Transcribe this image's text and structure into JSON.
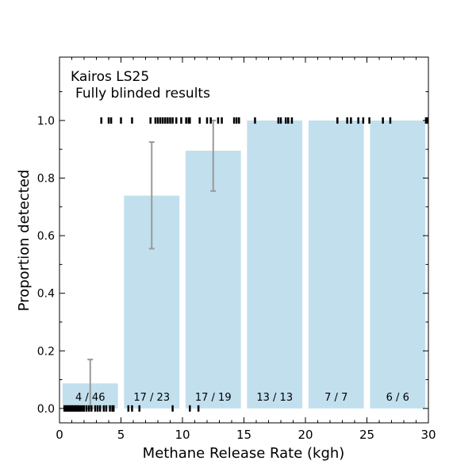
{
  "chart_data": {
    "type": "bar",
    "title": "Kairos LS25",
    "subtitle": "Fully blinded results",
    "xlabel": "Methane Release Rate (kgh)",
    "ylabel": "Proportion detected",
    "xlim": [
      0,
      30
    ],
    "ylim": [
      -0.05,
      1.22
    ],
    "xticks": [
      0,
      5,
      10,
      15,
      20,
      25,
      30
    ],
    "yticks": [
      0.0,
      0.2,
      0.4,
      0.6,
      0.8,
      1.0
    ],
    "xtick_labels": [
      "0",
      "5",
      "10",
      "15",
      "20",
      "25",
      "30"
    ],
    "ytick_labels": [
      "0.0",
      "0.2",
      "0.4",
      "0.6",
      "0.8",
      "1.0"
    ],
    "bar_color": "#c2dfee",
    "errorbar_color": "#999999",
    "grid": false,
    "bins": [
      {
        "x0": 0,
        "x1": 5,
        "value": 0.087,
        "label": "4 / 46",
        "err_center": 2.5,
        "err_low": 0.0,
        "err_high": 0.17
      },
      {
        "x0": 5,
        "x1": 10,
        "value": 0.739,
        "label": "17 / 23",
        "err_center": 7.5,
        "err_low": 0.555,
        "err_high": 0.925
      },
      {
        "x0": 10,
        "x1": 15,
        "value": 0.895,
        "label": "17 / 19",
        "err_center": 12.5,
        "err_low": 0.755,
        "err_high": 1.0
      },
      {
        "x0": 15,
        "x1": 20,
        "value": 1.0,
        "label": "13 / 13",
        "err_center": null,
        "err_low": null,
        "err_high": null
      },
      {
        "x0": 20,
        "x1": 25,
        "value": 1.0,
        "label": "7 / 7",
        "err_center": null,
        "err_low": null,
        "err_high": null
      },
      {
        "x0": 25,
        "x1": 30,
        "value": 1.0,
        "label": "6 / 6",
        "err_center": null,
        "err_low": null,
        "err_high": null
      }
    ],
    "detected_rates": [
      3.4,
      4.0,
      4.2,
      5.0,
      5.9,
      7.4,
      7.8,
      8.0,
      8.2,
      8.4,
      8.6,
      8.8,
      9.0,
      9.2,
      9.5,
      9.9,
      10.3,
      10.5,
      10.6,
      11.4,
      12.0,
      12.3,
      12.9,
      13.2,
      14.2,
      14.4,
      14.6,
      15.9,
      17.8,
      18.0,
      18.4,
      18.6,
      18.9,
      22.6,
      23.4,
      23.7,
      24.3,
      24.7,
      25.2,
      26.3,
      26.9,
      29.8,
      29.9
    ],
    "missed_rates": [
      0.4,
      0.5,
      0.6,
      0.7,
      0.8,
      0.9,
      1.0,
      1.1,
      1.2,
      1.3,
      1.4,
      1.5,
      1.6,
      1.75,
      1.9,
      2.0,
      2.2,
      2.4,
      2.6,
      2.9,
      3.1,
      3.3,
      3.6,
      3.8,
      4.1,
      4.3,
      4.4,
      5.6,
      5.9,
      6.5,
      9.2,
      10.6,
      11.3
    ]
  }
}
